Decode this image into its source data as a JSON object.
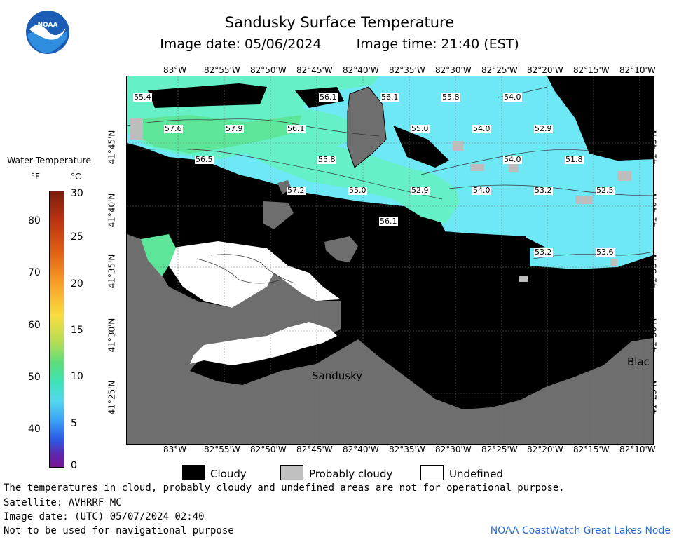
{
  "header": {
    "title": "Sandusky Surface Temperature",
    "image_date": "Image date: 05/06/2024",
    "image_time": "Image time: 21:40 (EST)"
  },
  "logo": {
    "text": "NOAA"
  },
  "longitude_labels": [
    "83°W",
    "82°55'W",
    "82°50'W",
    "82°45'W",
    "82°40'W",
    "82°35'W",
    "82°30'W",
    "82°25'W",
    "82°20'W",
    "82°15'W",
    "82°10'W"
  ],
  "latitude_labels": [
    "41°45'N",
    "41°40'N",
    "41°35'N",
    "41°30'N",
    "41°25'N"
  ],
  "temperature_labels": [
    "55.4",
    "56.1",
    "56.1",
    "55.8",
    "54.0",
    "57.6",
    "57.9",
    "56.1",
    "55.0",
    "54.0",
    "52.9",
    "56.5",
    "55.8",
    "54.0",
    "51.8",
    "57.2",
    "55.0",
    "52.9",
    "54.0",
    "53.2",
    "52.5",
    "56.1",
    "53.2",
    "53.6"
  ],
  "place_labels": {
    "sandusky": "Sandusky",
    "blac": "Blac"
  },
  "colorbar": {
    "title": "Water Temperature",
    "unit_f": "°F",
    "unit_c": "°C",
    "f_ticks": [
      "80",
      "70",
      "60",
      "50",
      "40"
    ],
    "c_ticks": [
      "30",
      "25",
      "20",
      "15",
      "10",
      "5",
      "0"
    ]
  },
  "legend": {
    "cloudy": "Cloudy",
    "probably_cloudy": "Probably cloudy",
    "undefined": "Undefined"
  },
  "footer": {
    "disclaimer": "The temperatures in cloud, probably cloudy and undefined areas are not for operational purpose.",
    "satellite": "Satellite: AVHRRF_MC",
    "utc_date": "Image date: (UTC) 05/07/2024  02:40",
    "nav_warning": "Not to be used for navigational purpose",
    "node": "NOAA CoastWatch Great Lakes Node"
  },
  "colors": {
    "land": "#6e6e6e",
    "cloudy": "#000000",
    "probably_cloudy": "#c0c0c0",
    "undefined": "#ffffff",
    "warm_water": "#5de69a",
    "mid_water": "#66f0c8",
    "cool_water": "#6ee8f4"
  }
}
